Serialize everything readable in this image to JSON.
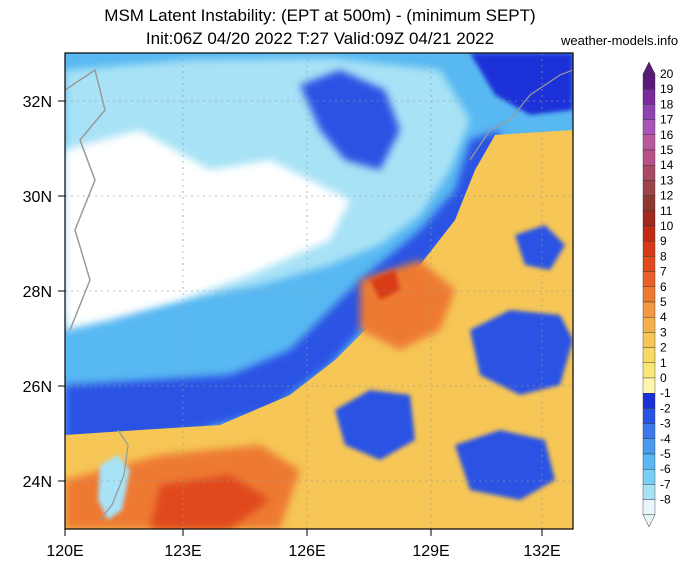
{
  "title_line1": "MSM Latent Instability: (EPT at 500m) - (minimum SEPT)",
  "title_line2": "Init:06Z 04/20 2022   T:27  Valid:09Z 04/21 2022",
  "credit": "weather-models.info",
  "lat_labels": [
    "32N",
    "30N",
    "28N",
    "26N",
    "24N"
  ],
  "lon_labels": [
    "120E",
    "123E",
    "126E",
    "129E",
    "132E"
  ],
  "colorbar": {
    "labels": [
      "20",
      "19",
      "18",
      "17",
      "16",
      "15",
      "14",
      "13",
      "12",
      "11",
      "10",
      "9",
      "8",
      "7",
      "6",
      "5",
      "4",
      "3",
      "2",
      "1",
      "0",
      "-1",
      "-2",
      "-3",
      "-4",
      "-5",
      "-6",
      "-7",
      "-8"
    ],
    "colors": [
      "#5a1a78",
      "#7a2a9a",
      "#8e44b0",
      "#a855b8",
      "#b8579a",
      "#b65086",
      "#a84a64",
      "#9c4448",
      "#8c3a30",
      "#a22a1c",
      "#c22a14",
      "#d83a18",
      "#e04a1c",
      "#e86028",
      "#ee7a30",
      "#f29840",
      "#f4b04a",
      "#f6c656",
      "#f8da64",
      "#fae876",
      "#fef6b0",
      "#1a30d8",
      "#2a52e4",
      "#3a78ec",
      "#4a9af0",
      "#58b8f2",
      "#78cef4",
      "#a8e2f6",
      "#e8f6fb"
    ]
  }
}
